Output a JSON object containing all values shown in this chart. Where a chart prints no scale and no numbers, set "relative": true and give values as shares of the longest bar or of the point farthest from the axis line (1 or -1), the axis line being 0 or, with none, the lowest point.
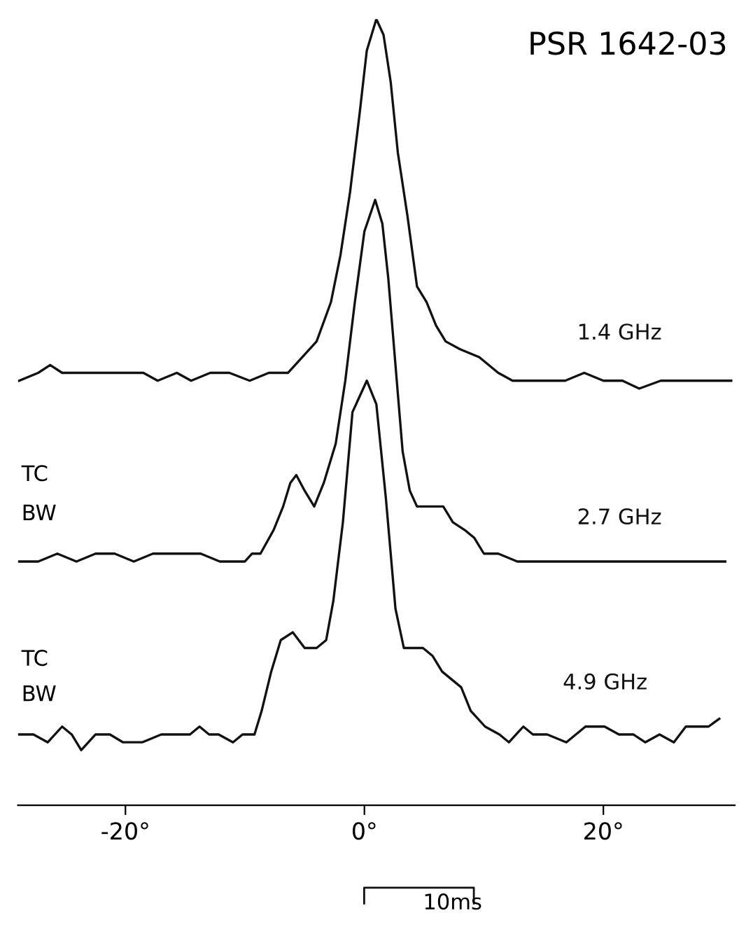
{
  "chart_data": {
    "type": "line",
    "title": "PSR 1642-03",
    "annotations": [
      "TC",
      "BW",
      "TC",
      "BW",
      "10ms"
    ],
    "relative": true,
    "tick_labels": "x",
    "xlim": [
      -29,
      31
    ],
    "xticks": [
      {
        "value": -20,
        "label": "-20°"
      },
      {
        "value": 0,
        "label": "0°"
      },
      {
        "value": 20,
        "label": "20°"
      }
    ],
    "series": [
      {
        "name": "1.4 GHz",
        "color": "#111111",
        "x": [
          -28.9,
          -27.3,
          -26.3,
          -25.3,
          -24.1,
          -22.9,
          -21.7,
          -20.1,
          -18.5,
          -17.3,
          -15.7,
          -14.5,
          -12.9,
          -11.3,
          -9.6,
          -8.0,
          -7.2,
          -6.4,
          -5.2,
          -4.0,
          -2.8,
          -2.0,
          -1.2,
          -0.4,
          0.2,
          1.0,
          1.6,
          2.2,
          2.8,
          3.6,
          4.4,
          5.2,
          6.0,
          6.8,
          8.0,
          9.6,
          11.2,
          12.4,
          13.6,
          15.2,
          16.8,
          18.4,
          20.0,
          21.6,
          23.0,
          24.8,
          26.4,
          28.0,
          29.6,
          30.7
        ],
        "values": [
          0.54,
          0.55,
          0.56,
          0.55,
          0.55,
          0.55,
          0.55,
          0.55,
          0.55,
          0.54,
          0.55,
          0.54,
          0.55,
          0.55,
          0.54,
          0.55,
          0.55,
          0.55,
          0.57,
          0.59,
          0.64,
          0.7,
          0.78,
          0.88,
          0.96,
          1,
          0.98,
          0.92,
          0.83,
          0.75,
          0.66,
          0.64,
          0.61,
          0.59,
          0.58,
          0.57,
          0.55,
          0.54,
          0.54,
          0.54,
          0.54,
          0.55,
          0.54,
          0.54,
          0.53,
          0.54,
          0.54,
          0.54,
          0.54,
          0.54
        ]
      },
      {
        "name": "2.7 GHz",
        "color": "#111111",
        "x": [
          -28.9,
          -27.3,
          -25.7,
          -24.1,
          -22.5,
          -20.9,
          -19.3,
          -17.7,
          -16.5,
          -15.3,
          -13.7,
          -12.1,
          -10.5,
          -10.0,
          -9.4,
          -8.7,
          -7.6,
          -6.8,
          -6.2,
          -5.7,
          -5.0,
          -4.2,
          -3.4,
          -2.4,
          -1.6,
          -0.8,
          0.0,
          0.9,
          1.5,
          2.0,
          2.6,
          3.2,
          3.8,
          4.4,
          5.0,
          5.8,
          6.6,
          7.4,
          8.4,
          9.2,
          10.0,
          11.2,
          12.8,
          14.0,
          16.0,
          17.6,
          19.2,
          20.8,
          22.4,
          24.0,
          25.6,
          27.2,
          28.8,
          29.6,
          30.2
        ],
        "values": [
          0.31,
          0.31,
          0.32,
          0.31,
          0.32,
          0.32,
          0.31,
          0.32,
          0.32,
          0.32,
          0.32,
          0.31,
          0.31,
          0.31,
          0.32,
          0.32,
          0.35,
          0.38,
          0.41,
          0.42,
          0.4,
          0.38,
          0.41,
          0.46,
          0.54,
          0.64,
          0.73,
          0.77,
          0.74,
          0.67,
          0.56,
          0.45,
          0.4,
          0.38,
          0.38,
          0.38,
          0.38,
          0.36,
          0.35,
          0.34,
          0.32,
          0.32,
          0.31,
          0.31,
          0.31,
          0.31,
          0.31,
          0.31,
          0.31,
          0.31,
          0.31,
          0.31,
          0.31,
          0.31,
          0.31
        ]
      },
      {
        "name": "4.9 GHz",
        "color": "#111111",
        "x": [
          -28.9,
          -27.7,
          -26.5,
          -25.3,
          -24.5,
          -23.7,
          -22.5,
          -21.3,
          -20.2,
          -18.6,
          -17.0,
          -15.8,
          -14.6,
          -13.8,
          -13.0,
          -12.2,
          -11.0,
          -10.2,
          -9.2,
          -8.6,
          -7.8,
          -7.0,
          -6.0,
          -5.0,
          -4.0,
          -3.2,
          -2.6,
          -1.8,
          -1.0,
          0.2,
          1.0,
          1.8,
          2.6,
          3.3,
          4.1,
          4.9,
          5.7,
          6.5,
          7.3,
          8.1,
          8.9,
          10.1,
          11.3,
          12.1,
          12.7,
          13.3,
          14.1,
          15.3,
          16.9,
          18.5,
          20.1,
          21.3,
          22.5,
          23.5,
          24.7,
          25.9,
          26.9,
          28.0,
          28.8,
          29.7
        ],
        "values": [
          0.09,
          0.09,
          0.08,
          0.1,
          0.09,
          0.07,
          0.09,
          0.09,
          0.08,
          0.08,
          0.09,
          0.09,
          0.09,
          0.1,
          0.09,
          0.09,
          0.08,
          0.09,
          0.09,
          0.12,
          0.17,
          0.21,
          0.22,
          0.2,
          0.2,
          0.21,
          0.26,
          0.36,
          0.5,
          0.54,
          0.51,
          0.39,
          0.25,
          0.2,
          0.2,
          0.2,
          0.19,
          0.17,
          0.16,
          0.15,
          0.12,
          0.1,
          0.09,
          0.08,
          0.09,
          0.1,
          0.09,
          0.09,
          0.08,
          0.1,
          0.1,
          0.09,
          0.09,
          0.08,
          0.09,
          0.08,
          0.1,
          0.1,
          0.1,
          0.11
        ]
      }
    ]
  }
}
